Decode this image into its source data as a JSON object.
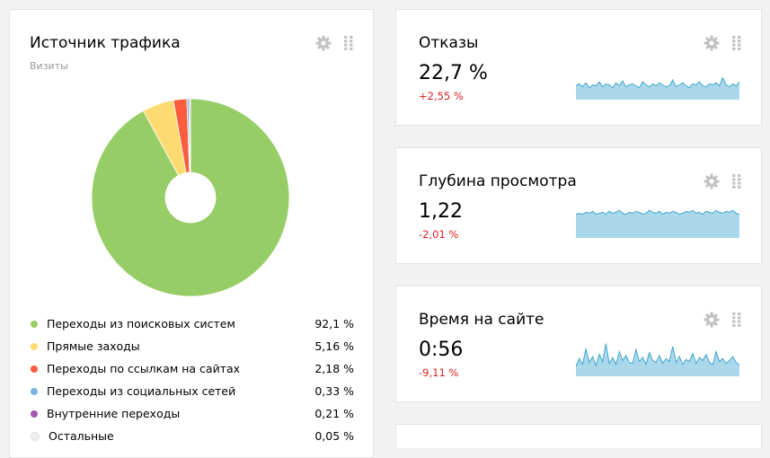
{
  "traffic": {
    "title": "Источник трафика",
    "subtitle": "Визиты",
    "legend": [
      {
        "label": "Переходы из поисковых систем",
        "value": "92,1 %",
        "color": "#97cd66"
      },
      {
        "label": "Прямые заходы",
        "value": "5,16 %",
        "color": "#fddb70"
      },
      {
        "label": "Переходы по ссылкам на сайтах",
        "value": "2,18 %",
        "color": "#f95d3e"
      },
      {
        "label": "Переходы из социальных сетей",
        "value": "0,33 %",
        "color": "#7bb1dc"
      },
      {
        "label": "Внутренние переходы",
        "value": "0,21 %",
        "color": "#a756b1"
      },
      {
        "label": "Остальные",
        "value": "0,05 %",
        "color": "#eeeeee"
      }
    ]
  },
  "chart_data": {
    "type": "pie",
    "title": "Источник трафика",
    "categories": [
      "Переходы из поисковых систем",
      "Прямые заходы",
      "Переходы по ссылкам на сайтах",
      "Переходы из социальных сетей",
      "Внутренние переходы",
      "Остальные"
    ],
    "values": [
      92.1,
      5.16,
      2.18,
      0.33,
      0.21,
      0.05
    ],
    "colors": [
      "#97cd66",
      "#fddb70",
      "#f95d3e",
      "#7bb1dc",
      "#a756b1",
      "#eeeeee"
    ],
    "legend": "bottom"
  },
  "metrics": [
    {
      "title": "Отказы",
      "value": "22,7 %",
      "change": "+2,55 %",
      "spark": [
        14,
        16,
        13,
        17,
        12,
        15,
        14,
        18,
        13,
        16,
        15,
        12,
        17,
        14,
        19,
        13,
        15,
        16,
        14,
        12,
        18,
        15,
        13,
        16,
        14,
        17,
        15,
        13,
        14,
        20,
        13,
        15,
        17,
        14,
        12,
        16,
        15,
        18,
        14,
        13,
        16,
        15,
        17,
        14,
        22,
        15,
        13,
        16,
        14,
        18
      ]
    },
    {
      "title": "Глубина просмотра",
      "value": "1,22",
      "change": "-2,01 %",
      "spark": [
        24,
        25,
        24,
        26,
        25,
        27,
        24,
        25,
        26,
        24,
        27,
        25,
        26,
        28,
        25,
        24,
        26,
        25,
        27,
        26,
        24,
        25,
        28,
        26,
        25,
        27,
        24,
        26,
        25,
        27,
        26,
        24,
        25,
        27,
        26,
        28,
        25,
        26,
        24,
        27,
        26,
        25,
        28,
        26,
        25,
        27,
        26,
        28,
        25,
        24
      ]
    },
    {
      "title": "Время на сайте",
      "value": "0:56",
      "change": "-9,11 %",
      "spark": [
        10,
        18,
        12,
        28,
        14,
        20,
        11,
        22,
        15,
        33,
        13,
        19,
        12,
        25,
        16,
        21,
        14,
        13,
        27,
        15,
        19,
        12,
        24,
        16,
        14,
        21,
        13,
        18,
        15,
        30,
        14,
        20,
        12,
        17,
        15,
        23,
        13,
        19,
        16,
        22,
        14,
        12,
        25,
        15,
        18,
        13,
        16,
        20,
        14,
        11
      ]
    }
  ],
  "icons": {
    "settings": "gear-icon",
    "drag": "drag-handle-icon"
  }
}
